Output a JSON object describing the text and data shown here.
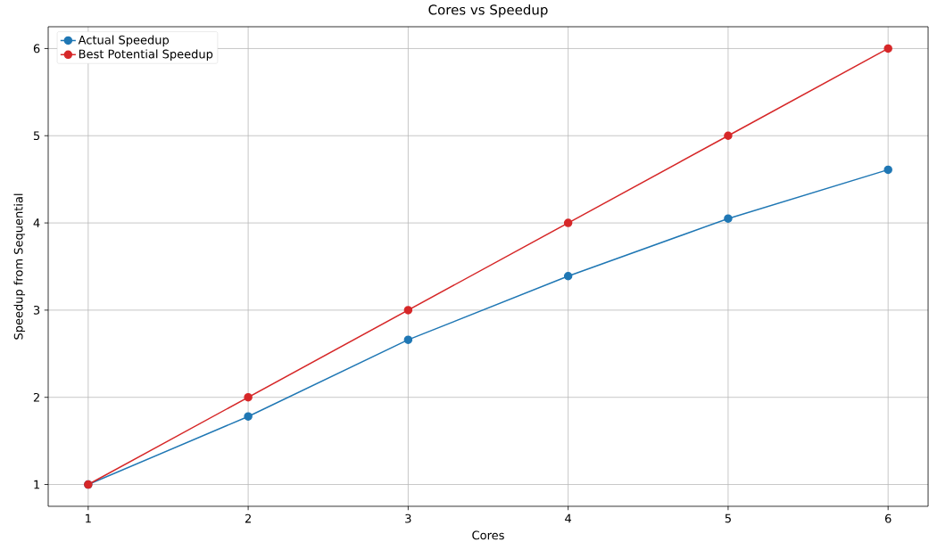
{
  "chart_data": {
    "type": "line",
    "title": "Cores vs Speedup",
    "xlabel": "Cores",
    "ylabel": "Speedup from Sequential",
    "x": [
      1,
      2,
      3,
      4,
      5,
      6
    ],
    "series": [
      {
        "name": "Actual Speedup",
        "color": "#1f77b4",
        "values": [
          1,
          1.78,
          2.66,
          3.39,
          4.05,
          4.61
        ]
      },
      {
        "name": "Best Potential Speedup",
        "color": "#d62728",
        "values": [
          1,
          2,
          3,
          4,
          5,
          6
        ]
      }
    ],
    "xlim": [
      0.75,
      6.25
    ],
    "ylim": [
      0.75,
      6.25
    ],
    "xticks": [
      1,
      2,
      3,
      4,
      5,
      6
    ],
    "yticks": [
      1,
      2,
      3,
      4,
      5,
      6
    ],
    "grid": true,
    "legend": "top left",
    "marker": "circle",
    "line_style": "solid"
  }
}
